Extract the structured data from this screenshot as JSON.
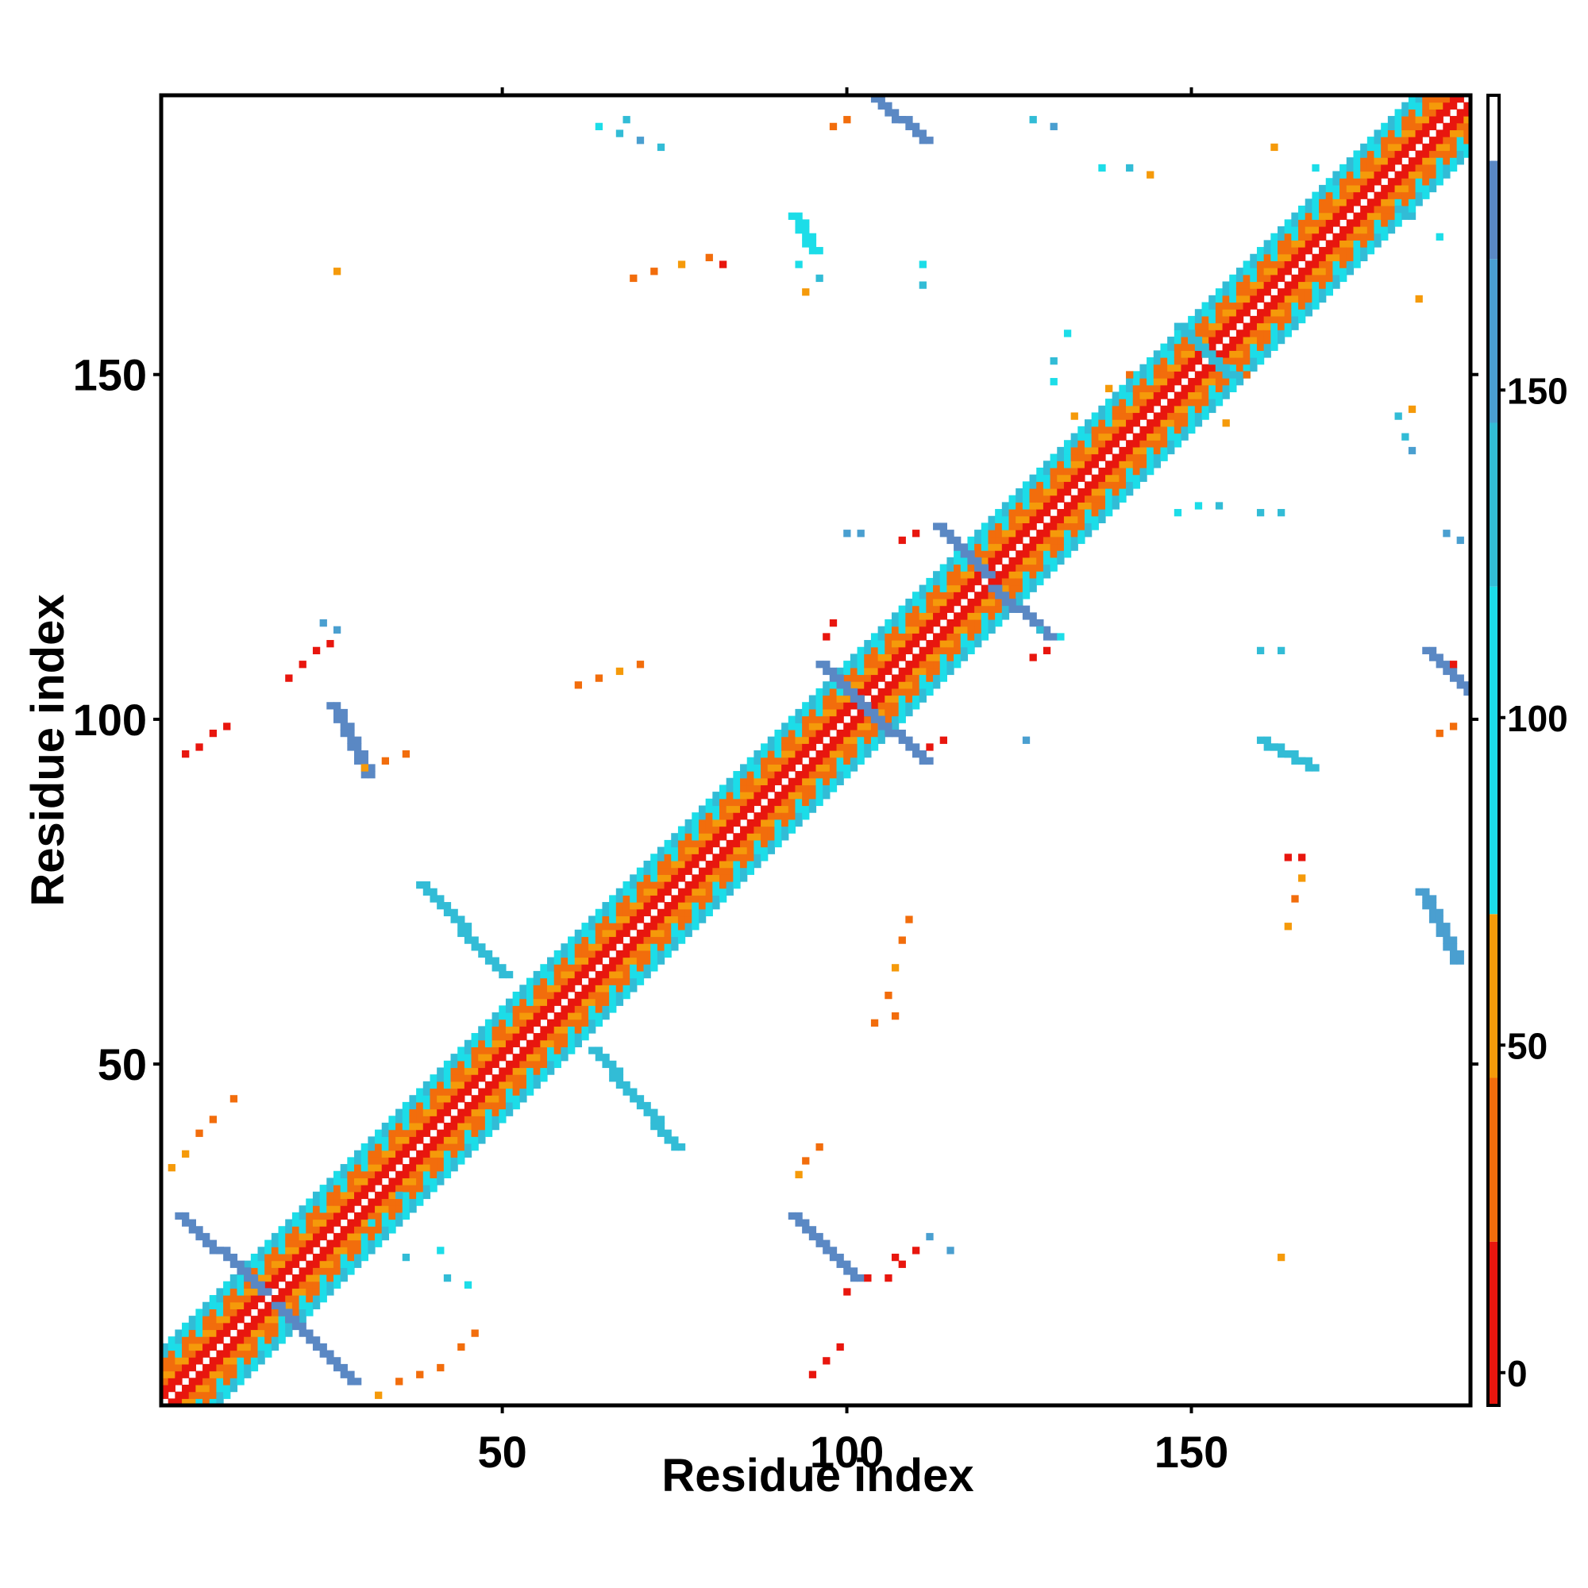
{
  "chart_data": {
    "type": "heatmap",
    "title": "",
    "xlabel": "Residue index",
    "ylabel": "Residue index",
    "xlim": [
      1,
      190
    ],
    "ylim": [
      1,
      190
    ],
    "x_ticks": [
      50,
      100,
      150
    ],
    "y_ticks": [
      50,
      100,
      150
    ],
    "x_tick_labels": [
      "50",
      "100",
      "150"
    ],
    "y_tick_labels": [
      "50",
      "100",
      "150"
    ],
    "grid": false,
    "legend": "colorbar-right",
    "colorbar": {
      "ticks": [
        0,
        50,
        100,
        150
      ],
      "tick_labels": [
        "0",
        "50",
        "100",
        "150"
      ],
      "range": [
        -5,
        195
      ],
      "levels": [
        {
          "from": -5,
          "to": 20,
          "color": "#e8160e"
        },
        {
          "from": 20,
          "to": 45,
          "color": "#f26d0c"
        },
        {
          "from": 45,
          "to": 70,
          "color": "#f59a0a"
        },
        {
          "from": 70,
          "to": 120,
          "color": "#1cdde8"
        },
        {
          "from": 120,
          "to": 145,
          "color": "#32bcd6"
        },
        {
          "from": 145,
          "to": 170,
          "color": "#4a9fd0"
        },
        {
          "from": 170,
          "to": 185,
          "color": "#5a88c4"
        },
        {
          "from": 185,
          "to": 195,
          "color": "#ffffff"
        }
      ]
    },
    "band_palette": [
      "#e8160e",
      "#f26d0c",
      "#f59a0a",
      "#1cdde8",
      "#32bcd6",
      "#4a9fd0",
      "#5a88c4"
    ],
    "diagonal_band": {
      "from": 1,
      "to": 190,
      "width": 8
    },
    "off_diagonal_contacts": [
      {
        "i": [
          3,
          15
        ],
        "j": [
          28,
          17
        ],
        "color": "#5a88c4"
      },
      {
        "i": [
          17,
          28
        ],
        "j": [
          15,
          4
        ],
        "color": "#5a88c4"
      },
      {
        "i": [
          25,
          30
        ],
        "j": [
          102,
          92
        ],
        "color": "#5a88c4"
      },
      {
        "i": [
          92,
          101
        ],
        "j": [
          28,
          19
        ],
        "color": "#5a88c4"
      },
      {
        "i": [
          96,
          103
        ],
        "j": [
          108,
          101
        ],
        "color": "#5a88c4"
      },
      {
        "i": [
          103,
          111
        ],
        "j": [
          101,
          94
        ],
        "color": "#5a88c4"
      },
      {
        "i": [
          113,
          120
        ],
        "j": [
          128,
          121
        ],
        "color": "#5a88c4"
      },
      {
        "i": [
          121,
          129
        ],
        "j": [
          119,
          112
        ],
        "color": "#5a88c4"
      },
      {
        "i": [
          104,
          111
        ],
        "j": [
          190,
          184
        ],
        "color": "#5a88c4"
      },
      {
        "i": [
          184,
          190
        ],
        "j": [
          110,
          104
        ],
        "color": "#5a88c4"
      },
      {
        "i": [
          92,
          95
        ],
        "j": [
          173,
          168
        ],
        "color": "#1cdde8"
      },
      {
        "i": [
          148,
          155
        ],
        "j": [
          157,
          150
        ],
        "color": "#32bcd6"
      },
      {
        "i": [
          38,
          50
        ],
        "j": [
          76,
          63
        ],
        "color": "#32bcd6"
      },
      {
        "i": [
          63,
          75
        ],
        "j": [
          52,
          38
        ],
        "color": "#32bcd6"
      },
      {
        "i": [
          160,
          167
        ],
        "j": [
          97,
          93
        ],
        "color": "#32bcd6"
      },
      {
        "i": [
          183,
          188
        ],
        "j": [
          75,
          65
        ],
        "color": "#4a9fd0"
      }
    ],
    "scatter_contacts": [
      {
        "x": 4,
        "y": 95,
        "color": "#e8160e"
      },
      {
        "x": 6,
        "y": 96,
        "color": "#e8160e"
      },
      {
        "x": 8,
        "y": 98,
        "color": "#e8160e"
      },
      {
        "x": 10,
        "y": 99,
        "color": "#e8160e"
      },
      {
        "x": 19,
        "y": 106,
        "color": "#e8160e"
      },
      {
        "x": 21,
        "y": 108,
        "color": "#e8160e"
      },
      {
        "x": 23,
        "y": 110,
        "color": "#e8160e"
      },
      {
        "x": 25,
        "y": 111,
        "color": "#e8160e"
      },
      {
        "x": 95,
        "y": 5,
        "color": "#e8160e"
      },
      {
        "x": 97,
        "y": 7,
        "color": "#e8160e"
      },
      {
        "x": 99,
        "y": 9,
        "color": "#e8160e"
      },
      {
        "x": 106,
        "y": 19,
        "color": "#e8160e"
      },
      {
        "x": 108,
        "y": 21,
        "color": "#e8160e"
      },
      {
        "x": 110,
        "y": 23,
        "color": "#e8160e"
      },
      {
        "x": 97,
        "y": 112,
        "color": "#e8160e"
      },
      {
        "x": 98,
        "y": 114,
        "color": "#e8160e"
      },
      {
        "x": 112,
        "y": 96,
        "color": "#e8160e"
      },
      {
        "x": 114,
        "y": 97,
        "color": "#e8160e"
      },
      {
        "x": 108,
        "y": 126,
        "color": "#e8160e"
      },
      {
        "x": 110,
        "y": 127,
        "color": "#e8160e"
      },
      {
        "x": 127,
        "y": 109,
        "color": "#e8160e"
      },
      {
        "x": 129,
        "y": 110,
        "color": "#e8160e"
      },
      {
        "x": 164,
        "y": 80,
        "color": "#e8160e"
      },
      {
        "x": 166,
        "y": 80,
        "color": "#e8160e"
      },
      {
        "x": 2,
        "y": 35,
        "color": "#f59a0a"
      },
      {
        "x": 4,
        "y": 37,
        "color": "#f59a0a"
      },
      {
        "x": 6,
        "y": 40,
        "color": "#f26d0c"
      },
      {
        "x": 8,
        "y": 42,
        "color": "#f26d0c"
      },
      {
        "x": 30,
        "y": 93,
        "color": "#f59a0a"
      },
      {
        "x": 33,
        "y": 94,
        "color": "#f26d0c"
      },
      {
        "x": 36,
        "y": 95,
        "color": "#f26d0c"
      },
      {
        "x": 32,
        "y": 2,
        "color": "#f59a0a"
      },
      {
        "x": 35,
        "y": 4,
        "color": "#f26d0c"
      },
      {
        "x": 38,
        "y": 5,
        "color": "#f26d0c"
      },
      {
        "x": 41,
        "y": 6,
        "color": "#f26d0c"
      },
      {
        "x": 26,
        "y": 165,
        "color": "#f59a0a"
      },
      {
        "x": 69,
        "y": 164,
        "color": "#f26d0c"
      },
      {
        "x": 72,
        "y": 165,
        "color": "#f26d0c"
      },
      {
        "x": 76,
        "y": 166,
        "color": "#f59a0a"
      },
      {
        "x": 80,
        "y": 167,
        "color": "#f26d0c"
      },
      {
        "x": 82,
        "y": 166,
        "color": "#e8160e"
      },
      {
        "x": 61,
        "y": 105,
        "color": "#f26d0c"
      },
      {
        "x": 64,
        "y": 106,
        "color": "#f26d0c"
      },
      {
        "x": 67,
        "y": 107,
        "color": "#f59a0a"
      },
      {
        "x": 70,
        "y": 108,
        "color": "#f26d0c"
      },
      {
        "x": 93,
        "y": 34,
        "color": "#f59a0a"
      },
      {
        "x": 94,
        "y": 36,
        "color": "#f26d0c"
      },
      {
        "x": 96,
        "y": 38,
        "color": "#f26d0c"
      },
      {
        "x": 100,
        "y": 187,
        "color": "#f26d0c"
      },
      {
        "x": 98,
        "y": 186,
        "color": "#f26d0c"
      },
      {
        "x": 106,
        "y": 60,
        "color": "#f26d0c"
      },
      {
        "x": 107,
        "y": 64,
        "color": "#f59a0a"
      },
      {
        "x": 108,
        "y": 68,
        "color": "#f26d0c"
      },
      {
        "x": 109,
        "y": 71,
        "color": "#f26d0c"
      },
      {
        "x": 164,
        "y": 70,
        "color": "#f59a0a"
      },
      {
        "x": 165,
        "y": 74,
        "color": "#f26d0c"
      },
      {
        "x": 166,
        "y": 77,
        "color": "#f59a0a"
      },
      {
        "x": 163,
        "y": 22,
        "color": "#f59a0a"
      },
      {
        "x": 162,
        "y": 183,
        "color": "#f59a0a"
      },
      {
        "x": 183,
        "y": 161,
        "color": "#f59a0a"
      },
      {
        "x": 186,
        "y": 98,
        "color": "#f26d0c"
      },
      {
        "x": 188,
        "y": 99,
        "color": "#f26d0c"
      },
      {
        "x": 188,
        "y": 108,
        "color": "#e8160e"
      },
      {
        "x": 138,
        "y": 148,
        "color": "#f59a0a"
      },
      {
        "x": 141,
        "y": 150,
        "color": "#f26d0c"
      },
      {
        "x": 133,
        "y": 144,
        "color": "#f59a0a"
      },
      {
        "x": 130,
        "y": 149,
        "color": "#1cdde8"
      },
      {
        "x": 130,
        "y": 152,
        "color": "#32bcd6"
      },
      {
        "x": 132,
        "y": 156,
        "color": "#1cdde8"
      },
      {
        "x": 148,
        "y": 130,
        "color": "#1cdde8"
      },
      {
        "x": 158,
        "y": 150,
        "color": "#f26d0c"
      },
      {
        "x": 155,
        "y": 143,
        "color": "#f59a0a"
      },
      {
        "x": 180,
        "y": 144,
        "color": "#32bcd6"
      },
      {
        "x": 181,
        "y": 141,
        "color": "#32bcd6"
      },
      {
        "x": 182,
        "y": 139,
        "color": "#4a9fd0"
      },
      {
        "x": 182,
        "y": 145,
        "color": "#f59a0a"
      },
      {
        "x": 180,
        "y": 174,
        "color": "#32bcd6"
      },
      {
        "x": 182,
        "y": 173,
        "color": "#32bcd6"
      },
      {
        "x": 160,
        "y": 110,
        "color": "#32bcd6"
      },
      {
        "x": 163,
        "y": 110,
        "color": "#32bcd6"
      },
      {
        "x": 151,
        "y": 131,
        "color": "#1cdde8"
      },
      {
        "x": 154,
        "y": 131,
        "color": "#32bcd6"
      },
      {
        "x": 160,
        "y": 130,
        "color": "#32bcd6"
      },
      {
        "x": 163,
        "y": 130,
        "color": "#32bcd6"
      },
      {
        "x": 187,
        "y": 127,
        "color": "#4a9fd0"
      },
      {
        "x": 189,
        "y": 126,
        "color": "#4a9fd0"
      },
      {
        "x": 100,
        "y": 127,
        "color": "#4a9fd0"
      },
      {
        "x": 102,
        "y": 127,
        "color": "#4a9fd0"
      },
      {
        "x": 126,
        "y": 97,
        "color": "#4a9fd0"
      },
      {
        "x": 131,
        "y": 112,
        "color": "#1cdde8"
      },
      {
        "x": 128,
        "y": 113,
        "color": "#32bcd6"
      },
      {
        "x": 111,
        "y": 166,
        "color": "#1cdde8"
      },
      {
        "x": 111,
        "y": 163,
        "color": "#32bcd6"
      },
      {
        "x": 93,
        "y": 166,
        "color": "#1cdde8"
      },
      {
        "x": 96,
        "y": 164,
        "color": "#32bcd6"
      },
      {
        "x": 94,
        "y": 162,
        "color": "#f59a0a"
      },
      {
        "x": 64,
        "y": 186,
        "color": "#1cdde8"
      },
      {
        "x": 67,
        "y": 185,
        "color": "#32bcd6"
      },
      {
        "x": 70,
        "y": 184,
        "color": "#4a9fd0"
      },
      {
        "x": 73,
        "y": 183,
        "color": "#32bcd6"
      },
      {
        "x": 68,
        "y": 187,
        "color": "#32bcd6"
      },
      {
        "x": 127,
        "y": 187,
        "color": "#32bcd6"
      },
      {
        "x": 130,
        "y": 186,
        "color": "#4a9fd0"
      },
      {
        "x": 137,
        "y": 180,
        "color": "#1cdde8"
      },
      {
        "x": 141,
        "y": 180,
        "color": "#32bcd6"
      },
      {
        "x": 144,
        "y": 179,
        "color": "#f59a0a"
      },
      {
        "x": 168,
        "y": 180,
        "color": "#1cdde8"
      },
      {
        "x": 171,
        "y": 179,
        "color": "#32bcd6"
      },
      {
        "x": 186,
        "y": 170,
        "color": "#1cdde8"
      },
      {
        "x": 24,
        "y": 114,
        "color": "#4a9fd0"
      },
      {
        "x": 26,
        "y": 113,
        "color": "#4a9fd0"
      },
      {
        "x": 112,
        "y": 25,
        "color": "#4a9fd0"
      },
      {
        "x": 115,
        "y": 23,
        "color": "#4a9fd0"
      },
      {
        "x": 100,
        "y": 17,
        "color": "#e8160e"
      },
      {
        "x": 103,
        "y": 19,
        "color": "#e8160e"
      },
      {
        "x": 107,
        "y": 22,
        "color": "#e8160e"
      },
      {
        "x": 104,
        "y": 56,
        "color": "#f26d0c"
      },
      {
        "x": 107,
        "y": 57,
        "color": "#f26d0c"
      },
      {
        "x": 11,
        "y": 45,
        "color": "#f26d0c"
      },
      {
        "x": 45,
        "y": 18,
        "color": "#1cdde8"
      },
      {
        "x": 42,
        "y": 19,
        "color": "#32bcd6"
      },
      {
        "x": 36,
        "y": 22,
        "color": "#32bcd6"
      },
      {
        "x": 41,
        "y": 23,
        "color": "#1cdde8"
      },
      {
        "x": 31,
        "y": 27,
        "color": "#1cdde8"
      },
      {
        "x": 35,
        "y": 31,
        "color": "#32bcd6"
      },
      {
        "x": 44,
        "y": 9,
        "color": "#f26d0c"
      },
      {
        "x": 46,
        "y": 11,
        "color": "#f26d0c"
      }
    ]
  }
}
